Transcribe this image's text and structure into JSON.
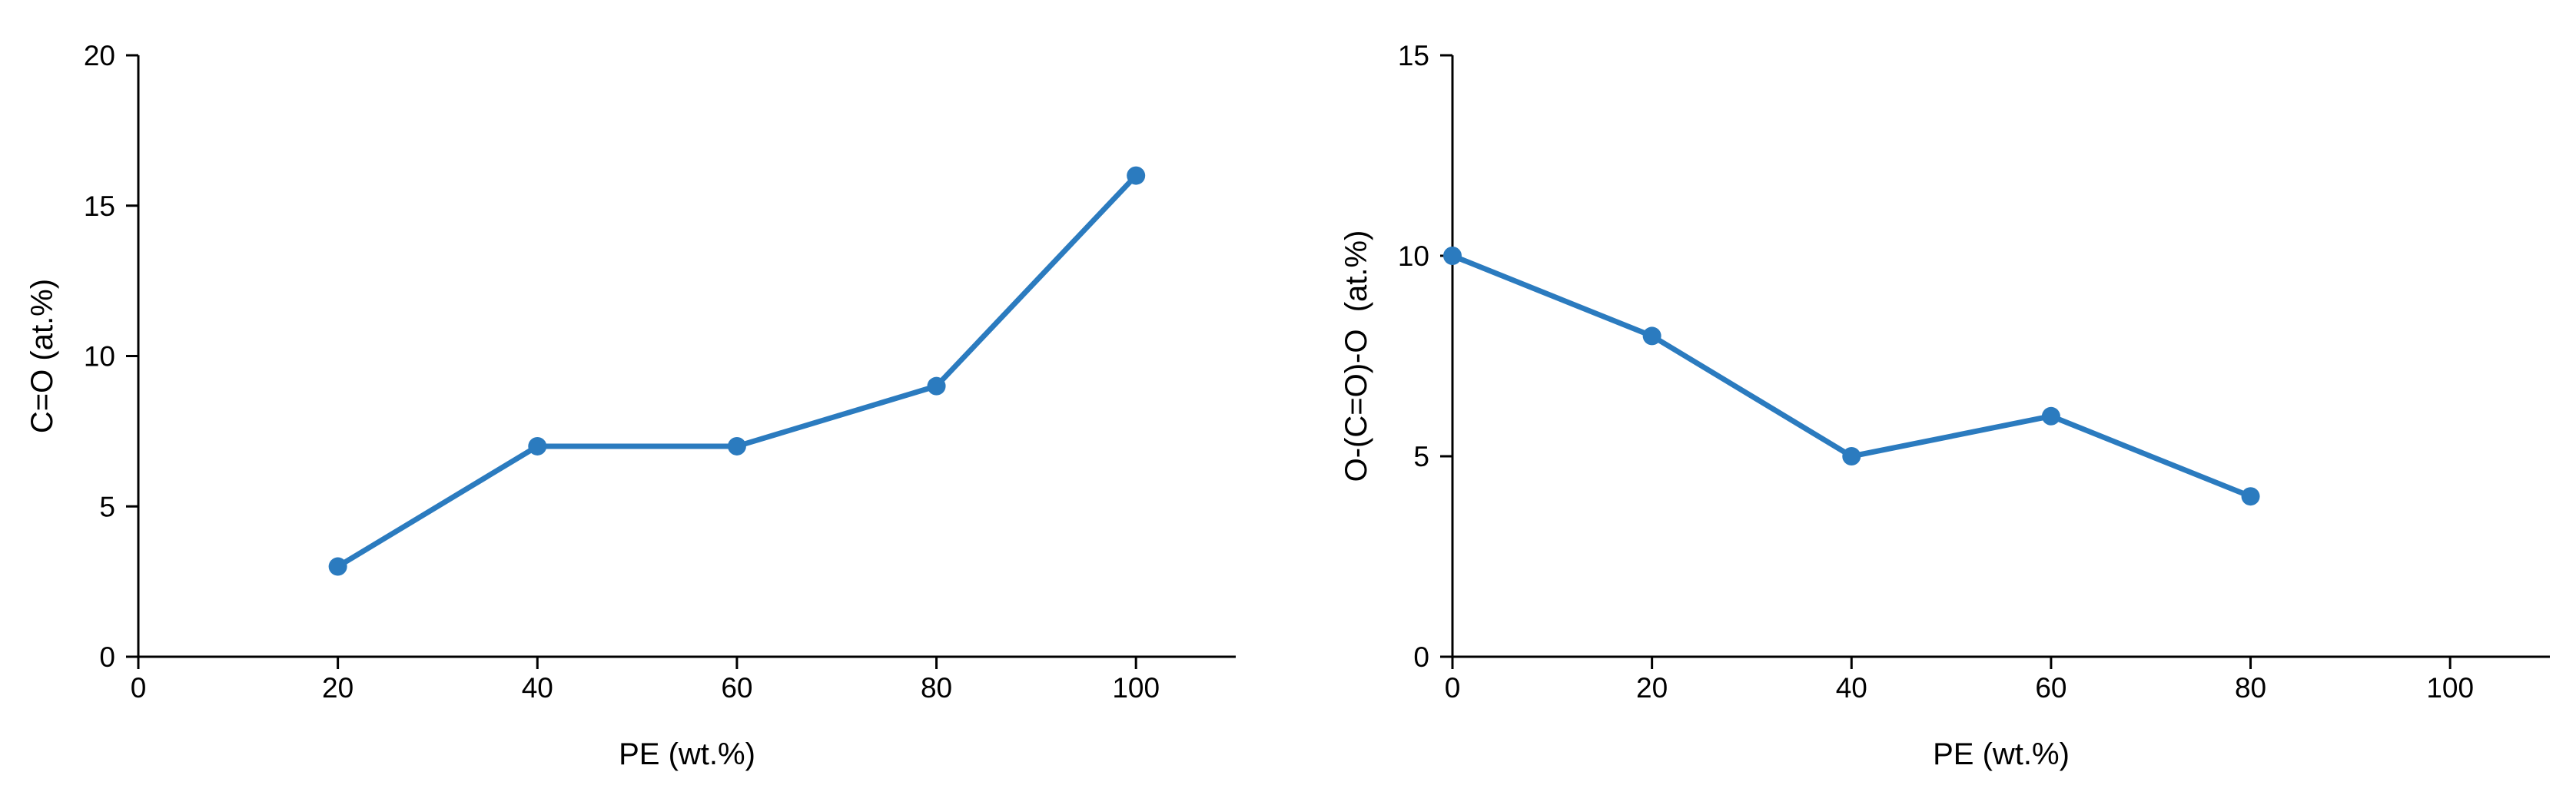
{
  "accent_color": "#2b7bbf",
  "chart_data": [
    {
      "type": "line",
      "xlabel": "PE (wt.%)",
      "ylabel": "C=O (at.%)",
      "xlim": [
        0,
        110
      ],
      "ylim": [
        0,
        20
      ],
      "x_ticks": [
        0,
        20,
        40,
        60,
        80,
        100
      ],
      "y_ticks": [
        0,
        5,
        10,
        15,
        20
      ],
      "x_tick_labels": [
        "0",
        "20",
        "40",
        "60",
        "80",
        "100"
      ],
      "y_tick_labels": [
        "0",
        "5",
        "10",
        "15",
        "20"
      ],
      "grid": false,
      "series": [
        {
          "x": [
            20,
            40,
            60,
            80,
            100
          ],
          "values": [
            3,
            7,
            7,
            9,
            16
          ],
          "color": "#2b7bbf"
        }
      ]
    },
    {
      "type": "line",
      "xlabel": "PE (wt.%)",
      "ylabel": "O-(C=O)-O  (at.%)",
      "xlim": [
        0,
        110
      ],
      "ylim": [
        0,
        15
      ],
      "x_ticks": [
        0,
        20,
        40,
        60,
        80,
        100
      ],
      "y_ticks": [
        0,
        5,
        10,
        15
      ],
      "x_tick_labels": [
        "0",
        "20",
        "40",
        "60",
        "80",
        "100"
      ],
      "y_tick_labels": [
        "0",
        "5",
        "10",
        "15"
      ],
      "grid": false,
      "series": [
        {
          "x": [
            0,
            20,
            40,
            60,
            80
          ],
          "values": [
            10,
            8,
            5,
            6,
            4
          ],
          "color": "#2b7bbf"
        }
      ]
    }
  ]
}
